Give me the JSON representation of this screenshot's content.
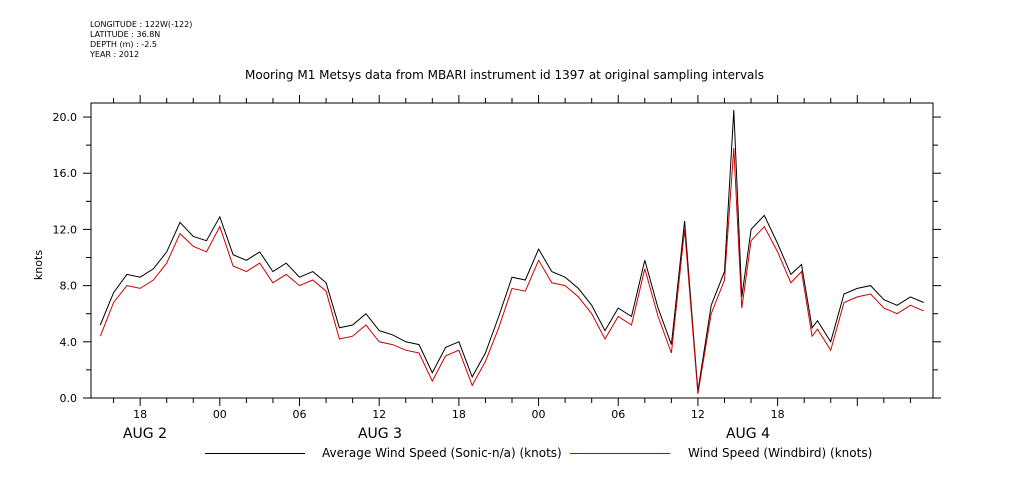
{
  "header": {
    "longitude": "LONGITUDE : 122W(-122)",
    "latitude": "LATITUDE : 36.8N",
    "depth": "DEPTH (m) : -2.5",
    "year": "YEAR : 2012"
  },
  "chart_data": {
    "type": "line",
    "title": "Mooring M1 Metsys data from MBARI instrument id 1397 at original sampling intervals",
    "ylabel": "knots",
    "xlabel": "",
    "ylim": [
      0,
      21
    ],
    "yticks": [
      "0.0",
      "4.0",
      "8.0",
      "12.0",
      "16.0",
      "20.0"
    ],
    "xlim_hours": [
      14.3,
      77.7
    ],
    "xtick_labels": [
      "18",
      "00",
      "06",
      "12",
      "18",
      "00",
      "06",
      "12",
      "18"
    ],
    "day_labels": [
      "AUG  2",
      "AUG  3",
      "AUG  4"
    ],
    "grid": false,
    "legend_position": "bottom",
    "colors": {
      "sonic": "#000000",
      "windbird": "#cc0000"
    },
    "series": [
      {
        "name": "Average Wind Speed (Sonic-n/a) (knots)",
        "x": [
          15.0,
          16.0,
          17.0,
          18.0,
          19.0,
          20.0,
          21.0,
          22.0,
          23.0,
          24.0,
          25.0,
          26.0,
          27.0,
          28.0,
          29.0,
          30.0,
          31.0,
          32.0,
          33.0,
          34.0,
          35.0,
          36.0,
          37.0,
          38.0,
          39.0,
          40.0,
          41.0,
          42.0,
          43.0,
          44.0,
          45.0,
          46.0,
          47.0,
          48.0,
          49.0,
          50.0,
          51.0,
          52.0,
          53.0,
          54.0,
          55.0,
          56.0,
          57.0,
          58.0,
          59.0,
          60.0,
          61.0,
          62.0,
          62.7,
          63.3,
          64.0,
          65.0,
          66.0,
          67.0,
          67.8,
          68.6,
          69.0,
          70.0,
          71.0,
          72.0,
          73.0,
          74.0,
          75.0,
          76.0,
          77.0
        ],
        "y": [
          5.2,
          7.5,
          8.8,
          8.6,
          9.2,
          10.4,
          12.5,
          11.5,
          11.2,
          12.9,
          10.2,
          9.8,
          10.4,
          9.0,
          9.6,
          8.6,
          9.0,
          8.2,
          5.0,
          5.2,
          6.0,
          4.8,
          4.5,
          4.0,
          3.8,
          1.8,
          3.6,
          4.0,
          1.5,
          3.2,
          5.8,
          8.6,
          8.4,
          10.6,
          9.0,
          8.6,
          7.8,
          6.6,
          4.8,
          6.4,
          5.8,
          9.8,
          6.4,
          3.8,
          12.6,
          0.5,
          6.6,
          9.0,
          20.5,
          7.2,
          12.0,
          13.0,
          11.0,
          8.8,
          9.5,
          5.0,
          5.5,
          4.0,
          7.4,
          7.8,
          8.0,
          7.0,
          6.6,
          7.2,
          6.8
        ]
      },
      {
        "name": "Wind Speed (Windbird) (knots)",
        "x": [
          15.0,
          16.0,
          17.0,
          18.0,
          19.0,
          20.0,
          21.0,
          22.0,
          23.0,
          24.0,
          25.0,
          26.0,
          27.0,
          28.0,
          29.0,
          30.0,
          31.0,
          32.0,
          33.0,
          34.0,
          35.0,
          36.0,
          37.0,
          38.0,
          39.0,
          40.0,
          41.0,
          42.0,
          43.0,
          44.0,
          45.0,
          46.0,
          47.0,
          48.0,
          49.0,
          50.0,
          51.0,
          52.0,
          53.0,
          54.0,
          55.0,
          56.0,
          57.0,
          58.0,
          59.0,
          60.0,
          61.0,
          62.0,
          62.7,
          63.3,
          64.0,
          65.0,
          66.0,
          67.0,
          67.8,
          68.6,
          69.0,
          70.0,
          71.0,
          72.0,
          73.0,
          74.0,
          75.0,
          76.0,
          77.0
        ],
        "y": [
          4.4,
          6.8,
          8.0,
          7.8,
          8.4,
          9.6,
          11.7,
          10.8,
          10.4,
          12.2,
          9.4,
          9.0,
          9.6,
          8.2,
          8.8,
          8.0,
          8.4,
          7.6,
          4.2,
          4.4,
          5.2,
          4.0,
          3.8,
          3.4,
          3.2,
          1.2,
          3.0,
          3.4,
          0.9,
          2.6,
          5.0,
          7.8,
          7.6,
          9.8,
          8.2,
          8.0,
          7.2,
          6.0,
          4.2,
          5.8,
          5.2,
          9.2,
          5.8,
          3.2,
          12.0,
          0.3,
          6.0,
          8.4,
          17.8,
          6.4,
          11.2,
          12.2,
          10.4,
          8.2,
          9.0,
          4.4,
          4.9,
          3.4,
          6.8,
          7.2,
          7.4,
          6.4,
          6.0,
          6.6,
          6.2
        ]
      }
    ]
  }
}
